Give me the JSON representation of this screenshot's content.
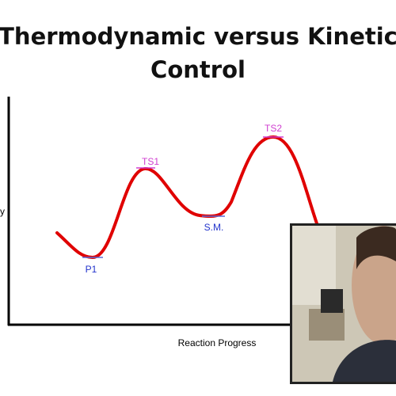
{
  "slide": {
    "title_lines": [
      "Thermodynamic versus Kinetic",
      "Control"
    ],
    "y_axis_label_fragment": "y",
    "x_axis_label": "Reaction Progress",
    "points": {
      "ts1": "TS1",
      "ts2": "TS2",
      "p1": "P1",
      "sm": "S.M."
    }
  }
}
